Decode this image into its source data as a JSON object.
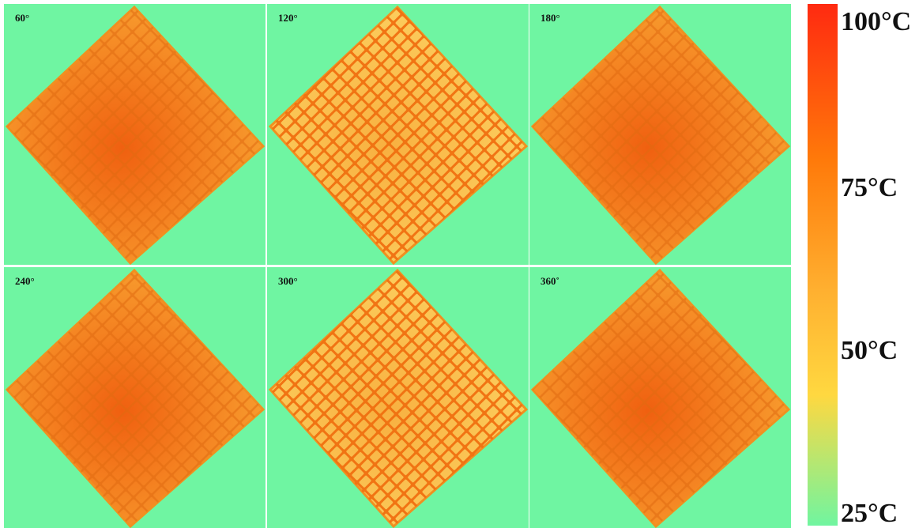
{
  "panels": [
    {
      "label": "60°"
    },
    {
      "label": "120°"
    },
    {
      "label": "180°"
    },
    {
      "label": "240°"
    },
    {
      "label": "300°"
    },
    {
      "label": "360˚"
    }
  ],
  "colorbar": {
    "labels": [
      "100°C",
      "75°C",
      "50°C",
      "25°C"
    ]
  }
}
